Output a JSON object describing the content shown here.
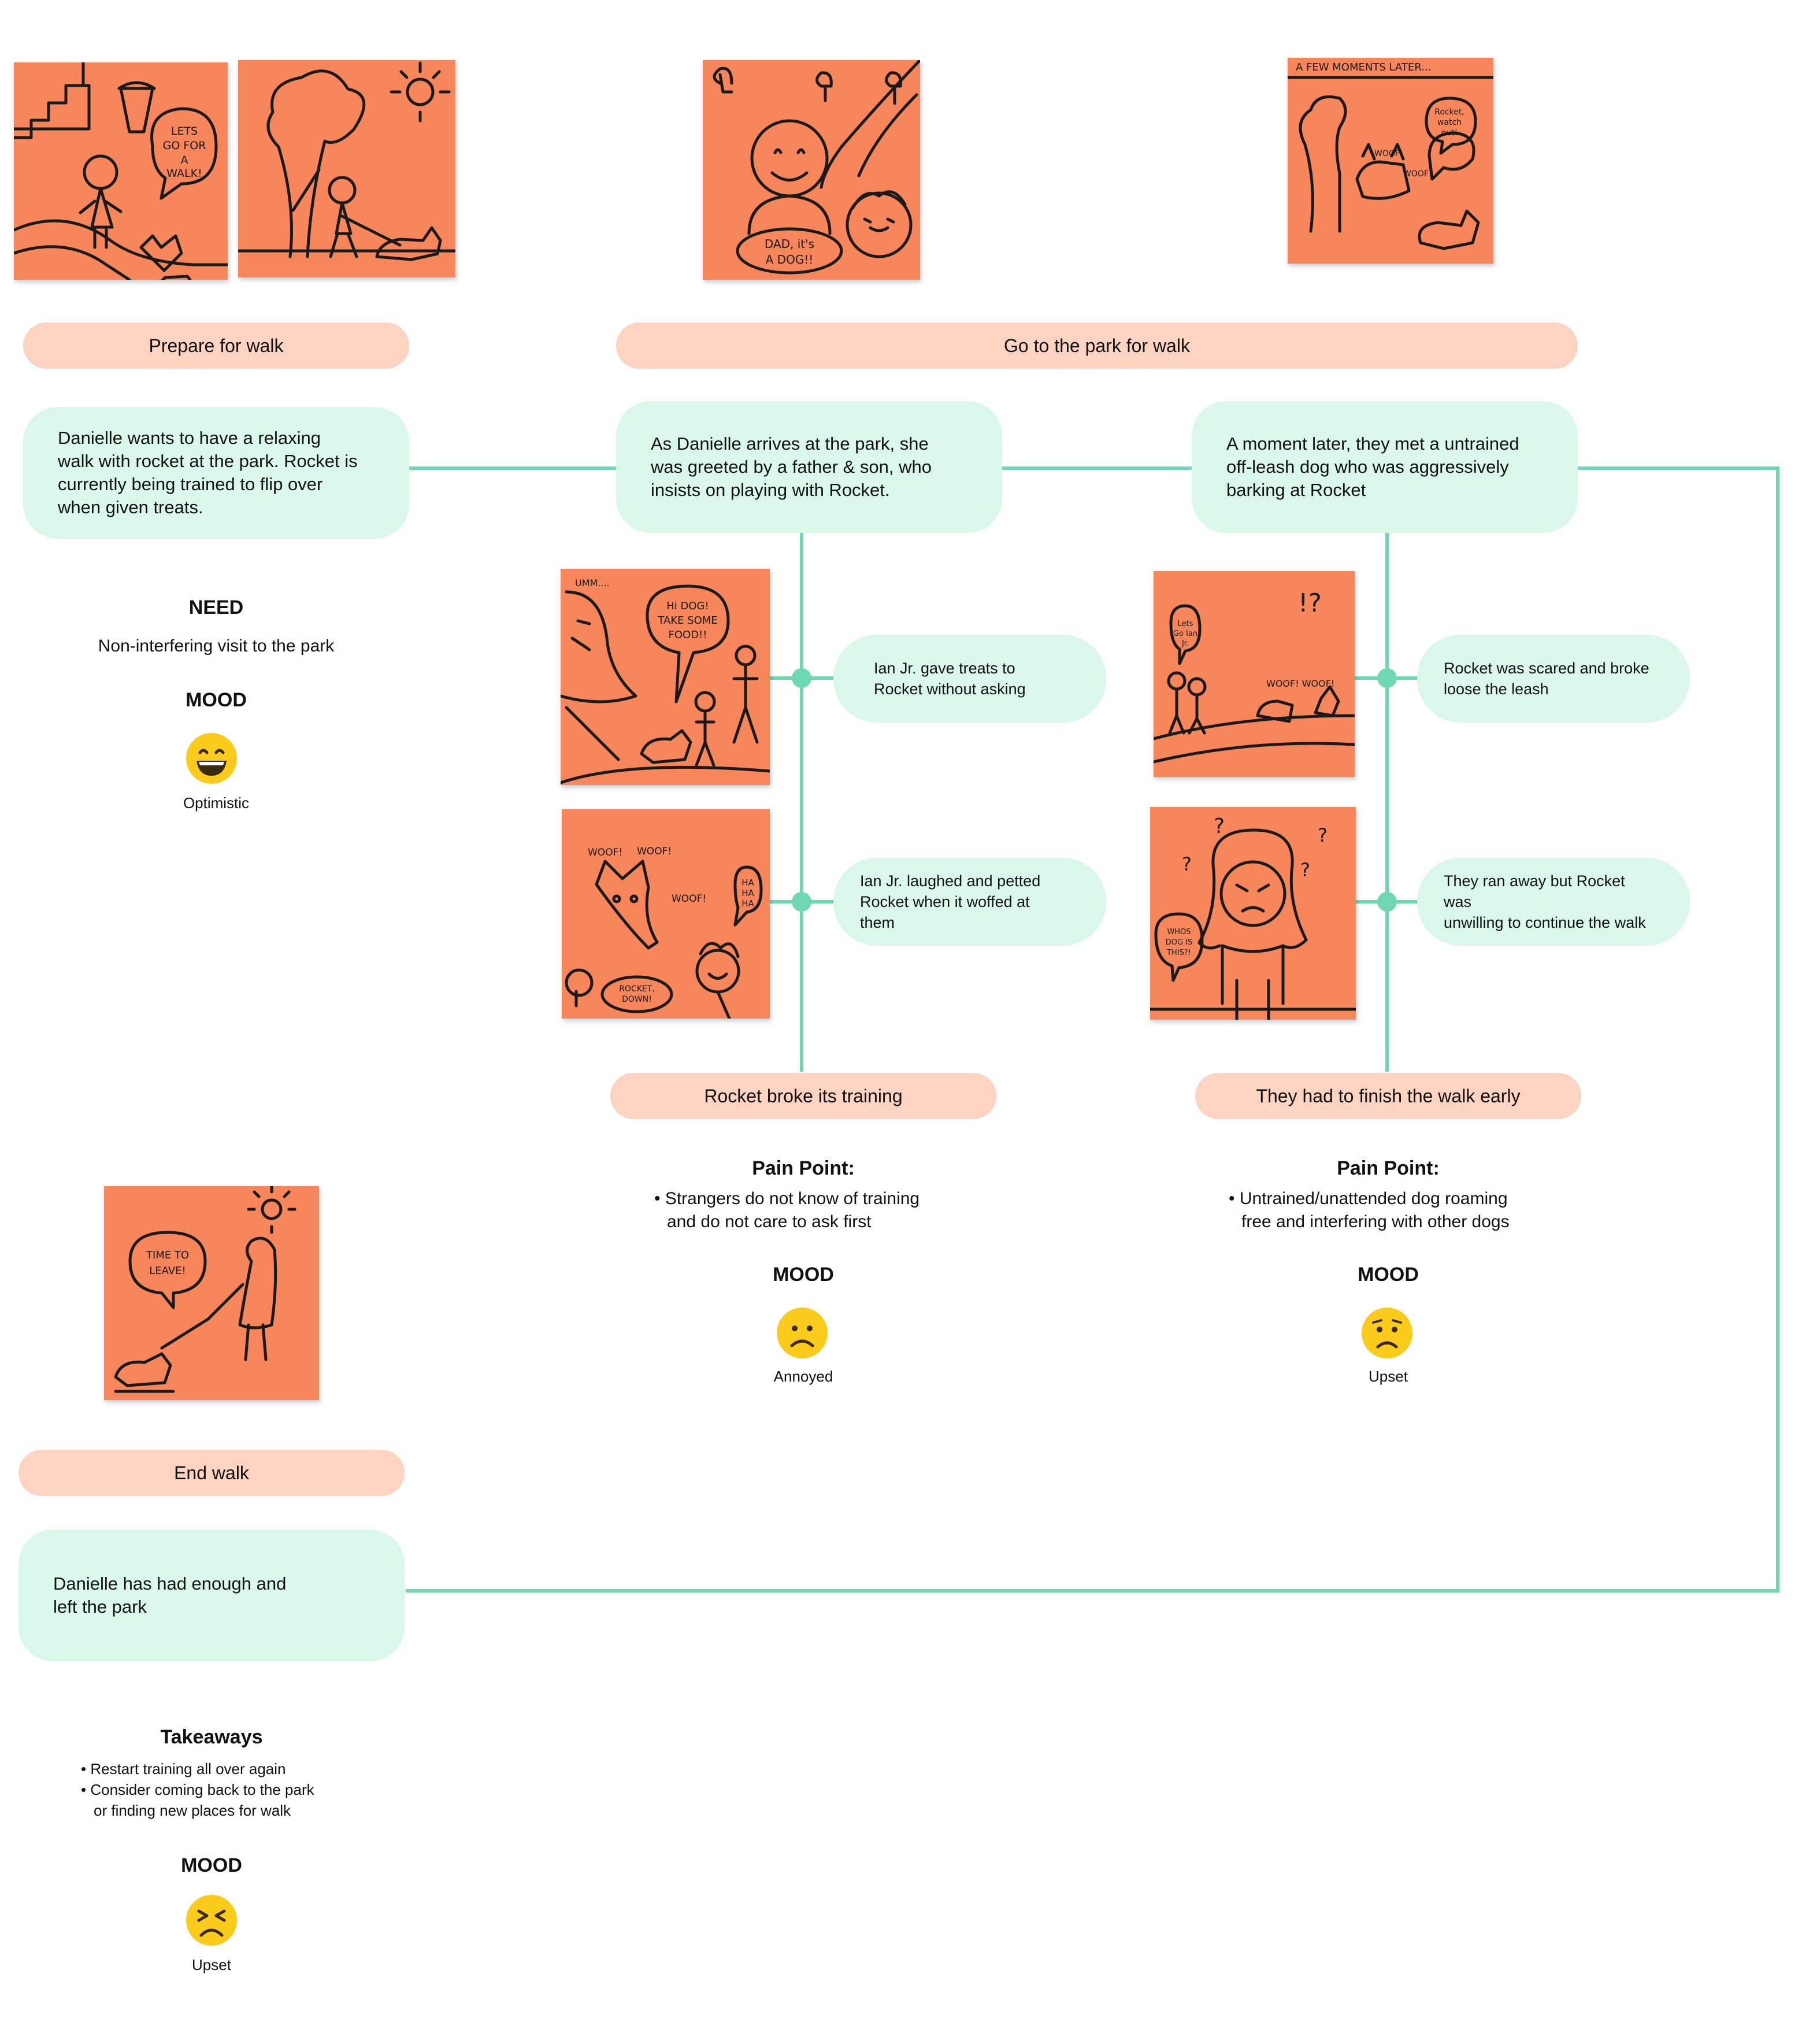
{
  "colors": {
    "connector": "#6ed8b2",
    "stage_bg": "#fdd3c1",
    "card_bg": "#d9f8ea",
    "sticky_note": "#f7865a",
    "emoji_face": "#fbcb1c"
  },
  "sketches": {
    "walk_start": {
      "bubble": [
        "LETS",
        "GO FOR",
        "A",
        "WALK!"
      ]
    },
    "park_arrival": {
      "bubble": [
        "DAD, it's",
        "A DOG!!"
      ]
    },
    "moments_later": {
      "banner": "A FEW MOMENTS LATER...",
      "bubble": [
        "Rocket,",
        "watch",
        "out!"
      ],
      "sounds": [
        "WOOF!",
        "WOOF!"
      ]
    },
    "treats": {
      "umm": "UMM....",
      "bubble": [
        "Hi DOG!",
        "TAKE SOME",
        "FOOD!!"
      ]
    },
    "barking": {
      "sounds": [
        "WOOF!",
        "WOOF!",
        "WOOF!"
      ],
      "laugh": [
        "HA",
        "HA",
        "HA"
      ],
      "bubble": [
        "ROCKET,",
        "DOWN!"
      ]
    },
    "scared": {
      "bubble": [
        "Lets",
        "Go Ian",
        "Jr."
      ],
      "sounds": "WOOF! WOOF!",
      "marks": "!?"
    },
    "whose_dog": {
      "bubble": [
        "WHOS",
        "DOG IS",
        "THIS?!"
      ],
      "marks": "?"
    },
    "leave": {
      "bubble": [
        "TIME TO",
        "LEAVE!"
      ]
    }
  },
  "stages": {
    "prepare": "Prepare for walk",
    "park": "Go to the park for walk",
    "training": "Rocket broke its training",
    "finish_early": "They had to finish the walk early",
    "end": "End walk"
  },
  "cards": {
    "prepare": [
      "Danielle wants to have a relaxing",
      "walk with rocket at the park. Rocket is",
      "currently being trained to flip over",
      "when given treats."
    ],
    "arrival": [
      "As Danielle arrives at the park, she",
      "was greeted by a father & son, who",
      "insists on playing with Rocket."
    ],
    "untrained": [
      "A moment later, they met a untrained",
      "off-leash dog who was aggressively",
      "barking at Rocket"
    ],
    "treats": [
      "Ian Jr. gave treats to",
      "Rocket without asking"
    ],
    "laughed": [
      "Ian Jr. laughed and petted",
      "Rocket when it woffed at them"
    ],
    "scared": [
      "Rocket was scared and broke",
      "loose the leash"
    ],
    "ran_away": [
      "They ran away but Rocket was",
      "unwilling to continue the walk"
    ],
    "end": [
      "Danielle has had enough and",
      "left the park"
    ]
  },
  "need": {
    "title": "NEED",
    "text": "Non-interfering visit to the park"
  },
  "moods": {
    "title": "MOOD",
    "prepare": {
      "label": "Optimistic",
      "icon": "grinning-face-icon"
    },
    "training": {
      "label": "Annoyed",
      "icon": "frowning-face-icon"
    },
    "finish": {
      "label": "Upset",
      "icon": "worried-face-icon"
    },
    "end": {
      "label": "Upset",
      "icon": "tired-face-icon"
    }
  },
  "pain_points": {
    "title": "Pain Point:",
    "training": [
      "• Strangers do not know of training",
      "and do not care to ask first"
    ],
    "finish": [
      "• Untrained/unattended dog roaming",
      "free and interfering with other dogs"
    ]
  },
  "takeaways": {
    "title": "Takeaways",
    "items": [
      "• Restart training all over again",
      "• Consider coming back to the park",
      "or finding new places for walk"
    ]
  }
}
